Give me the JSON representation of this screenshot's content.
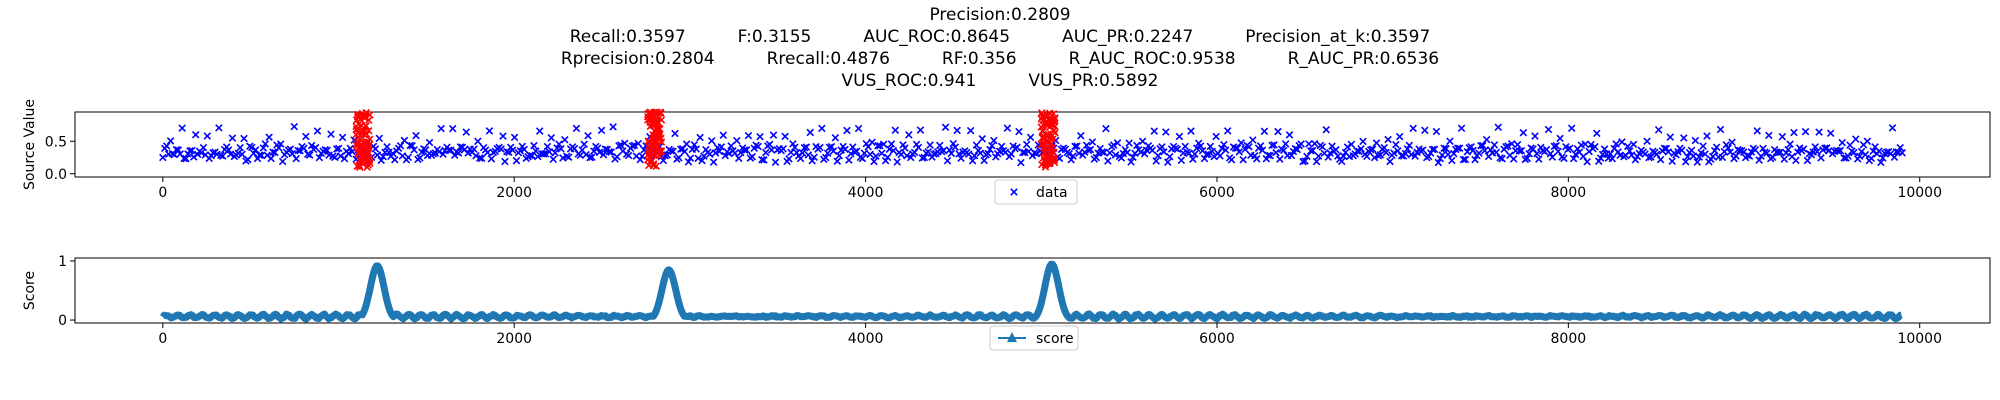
{
  "title_lines": [
    [
      "Precision:0.2809"
    ],
    [
      "Recall:0.3597",
      "F:0.3155",
      "AUC_ROC:0.8645",
      "AUC_PR:0.2247",
      "Precision_at_k:0.3597"
    ],
    [
      "Rprecision:0.2804",
      "Rrecall:0.4876",
      "RF:0.356",
      "R_AUC_ROC:0.9538",
      "R_AUC_PR:0.6536"
    ],
    [
      "VUS_ROC:0.941",
      "VUS_PR:0.5892"
    ]
  ],
  "colors": {
    "data": "#0000ff",
    "anomaly": "#ff0000",
    "score": "#1f77b4"
  },
  "chart_data": [
    {
      "type": "scatter",
      "ylabel": "Source Value",
      "xlim": [
        -500,
        10400
      ],
      "ylim": [
        -0.05,
        0.95
      ],
      "xticks": [
        "0",
        "2000",
        "4000",
        "6000",
        "8000",
        "10000"
      ],
      "xtick_values": [
        0,
        2000,
        4000,
        6000,
        8000,
        10000
      ],
      "yticks": [
        "0.0",
        "0.5"
      ],
      "ytick_values": [
        0.0,
        0.5
      ],
      "series": [
        {
          "name": "data",
          "marker": "x",
          "x_range": [
            0,
            9900
          ],
          "y_band": [
            0.2,
            0.75
          ]
        }
      ],
      "anomaly_ranges": [
        [
          1100,
          1180
        ],
        [
          2760,
          2840
        ],
        [
          5000,
          5080
        ]
      ],
      "anomaly_y_band": [
        0.1,
        0.95
      ],
      "legend": {
        "placement": "bottom-center",
        "label": "data"
      }
    },
    {
      "type": "line",
      "ylabel": "Score",
      "xlim": [
        -500,
        10400
      ],
      "ylim": [
        -0.05,
        1.05
      ],
      "xticks": [
        "0",
        "2000",
        "4000",
        "6000",
        "8000",
        "10000"
      ],
      "xtick_values": [
        0,
        2000,
        4000,
        6000,
        8000,
        10000
      ],
      "yticks": [
        "0",
        "1"
      ],
      "ytick_values": [
        0,
        1
      ],
      "series": [
        {
          "name": "score",
          "marker": "^",
          "x_range": [
            0,
            9900
          ],
          "baseline": 0.06
        }
      ],
      "peaks": [
        {
          "x": 1220,
          "y": 0.92
        },
        {
          "x": 2880,
          "y": 0.85
        },
        {
          "x": 5060,
          "y": 0.95
        }
      ],
      "legend": {
        "placement": "bottom-center",
        "label": "score"
      }
    }
  ]
}
